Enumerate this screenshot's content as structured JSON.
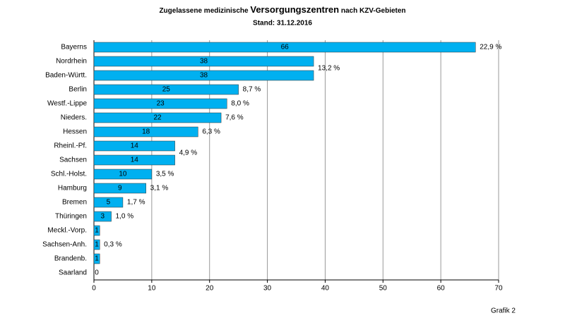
{
  "chart_data": {
    "type": "bar",
    "orientation": "horizontal",
    "title_parts": [
      "Zugelassene medizinische ",
      "Versorgungszentren",
      " nach KZV-Gebieten"
    ],
    "subtitle": "Stand: 31.12.2016",
    "footer": "Grafik 2",
    "categories": [
      "Bayerns",
      "Nordrhein",
      "Baden-Württ.",
      "Berlin",
      "Westf.-Lippe",
      "Nieders.",
      "Hessen",
      "Rheinl.-Pf.",
      "Sachsen",
      "Schl.-Holst.",
      "Hamburg",
      "Bremen",
      "Thüringen",
      "Meckl.-Vorp.",
      "Sachsen-Anh.",
      "Brandenb.",
      "Saarland"
    ],
    "values": [
      66,
      38,
      38,
      25,
      23,
      22,
      18,
      14,
      14,
      10,
      9,
      5,
      3,
      1,
      1,
      1,
      0
    ],
    "share_labels": [
      "22,9 %",
      "13,2 %",
      null,
      "8,7 %",
      "8,0 %",
      "7,6 %",
      "6,3 %",
      "4,9 %",
      null,
      "3,5 %",
      "3,1 %",
      "1,7 %",
      "1,0 %",
      null,
      "0,3 %",
      null,
      null
    ],
    "color": "#00b0f0",
    "xlim": [
      0,
      70
    ],
    "xticks": [
      0,
      10,
      20,
      30,
      40,
      50,
      60,
      70
    ],
    "grid": true
  }
}
